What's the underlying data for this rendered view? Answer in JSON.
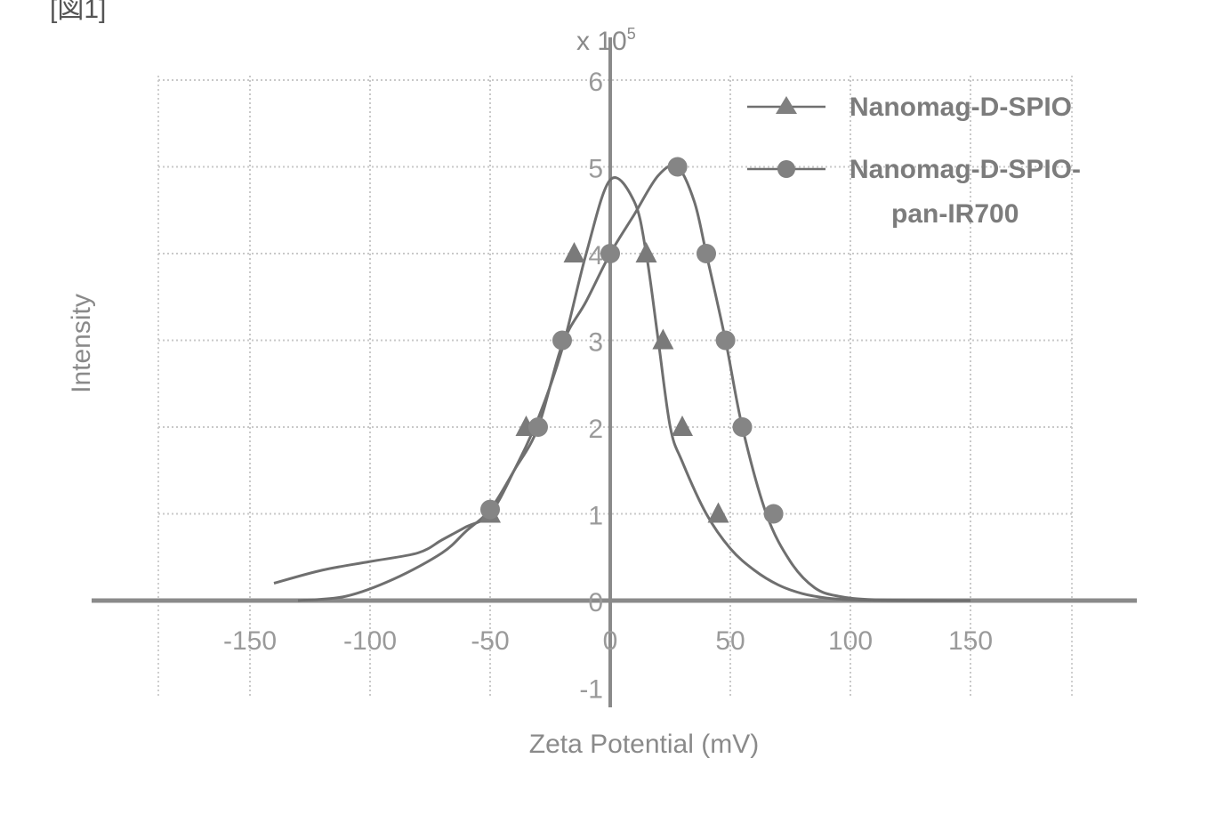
{
  "figure_label": "[図1]",
  "chart_data": {
    "type": "line",
    "title": "",
    "xlabel": "Zeta Potential (mV)",
    "ylabel": "Intensity",
    "y_multiplier_label": "x 10",
    "y_multiplier_exp": "5",
    "xlim": [
      -200,
      190
    ],
    "ylim": [
      -1,
      6
    ],
    "x_ticks": [
      -150,
      -100,
      -50,
      0,
      50,
      100,
      150
    ],
    "x_tick_labels": [
      "-150",
      "-100",
      "-50",
      "0",
      "50",
      "100",
      "150"
    ],
    "y_ticks": [
      -1,
      0,
      1,
      2,
      3,
      4,
      5,
      6
    ],
    "y_tick_labels": [
      "-1",
      "0",
      "1",
      "2",
      "3",
      "4",
      "5",
      "6"
    ],
    "grid": true,
    "legend_position": "top-right",
    "series": [
      {
        "name": "Nanomag-D-SPIO",
        "marker": "triangle",
        "color": "#6f6f6f",
        "x": [
          -140,
          -120,
          -100,
          -80,
          -70,
          -60,
          -50,
          -40,
          -30,
          -20,
          -10,
          0,
          10,
          15,
          20,
          25,
          30,
          40,
          50,
          60,
          70,
          80,
          90,
          100,
          120,
          150
        ],
        "y": [
          0.2,
          0.35,
          0.45,
          0.55,
          0.7,
          0.85,
          1.0,
          1.5,
          2.1,
          2.9,
          4.0,
          4.85,
          4.6,
          4.0,
          3.0,
          2.0,
          1.6,
          1.0,
          0.6,
          0.35,
          0.18,
          0.08,
          0.03,
          0.01,
          0.0,
          0.0
        ]
      },
      {
        "name": "Nanomag-D-SPIO-pan-IR700",
        "marker": "circle",
        "color": "#6f6f6f",
        "x": [
          -130,
          -110,
          -90,
          -70,
          -60,
          -50,
          -40,
          -30,
          -20,
          -10,
          0,
          10,
          20,
          28,
          35,
          40,
          48,
          55,
          65,
          75,
          85,
          95,
          110,
          140
        ],
        "y": [
          0.0,
          0.05,
          0.25,
          0.55,
          0.8,
          1.05,
          1.5,
          2.0,
          2.95,
          3.45,
          4.0,
          4.45,
          4.9,
          5.0,
          4.6,
          4.0,
          3.0,
          2.0,
          1.0,
          0.45,
          0.15,
          0.05,
          0.01,
          0.0
        ],
        "marked_points_x": [
          -50,
          -30,
          -20,
          0,
          28,
          40,
          48,
          55,
          68
        ],
        "marked_points_y": [
          1.05,
          2.0,
          3.0,
          4.0,
          5.0,
          4.0,
          3.0,
          2.0,
          1.0
        ]
      }
    ],
    "triangle_markers_x": [
      -50,
      -35,
      -15,
      15,
      22,
      30,
      45
    ],
    "triangle_markers_y": [
      1.0,
      2.0,
      4.0,
      4.0,
      3.0,
      2.0,
      1.0
    ],
    "legend": [
      {
        "label": "Nanomag-D-SPIO",
        "marker": "triangle"
      },
      {
        "label_line1": "Nanomag-D-SPIO-",
        "label_line2": "pan-IR700",
        "marker": "circle"
      }
    ]
  }
}
